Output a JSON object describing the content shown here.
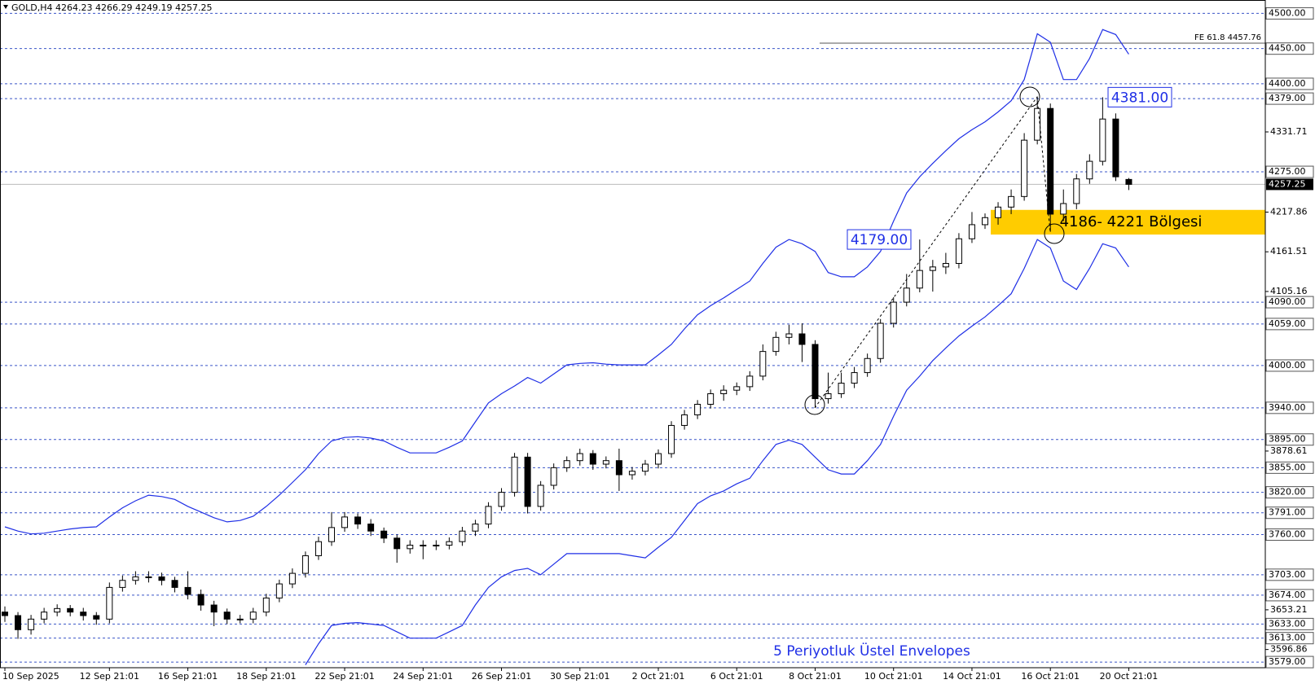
{
  "chart_data": {
    "type": "candlestick",
    "header": "GOLD,H4  4264.23 4266.29 4249.19 4257.25",
    "footer_note": "5 Periyotluk Üstel Envelopes",
    "categories": [
      "10 Sep 2025",
      null,
      null,
      null,
      null,
      null,
      null,
      null,
      "12 Sep 21:01",
      null,
      null,
      null,
      null,
      null,
      "16 Sep 21:01",
      null,
      null,
      null,
      null,
      null,
      "18 Sep 21:01",
      null,
      null,
      null,
      null,
      null,
      "22 Sep 21:01",
      null,
      null,
      null,
      null,
      null,
      "24 Sep 21:01",
      null,
      null,
      null,
      null,
      null,
      "26 Sep 21:01",
      null,
      null,
      null,
      null,
      null,
      "30 Sep 21:01",
      null,
      null,
      null,
      null,
      null,
      "2 Oct 21:01",
      null,
      null,
      null,
      null,
      null,
      "6 Oct 21:01",
      null,
      null,
      null,
      null,
      null,
      "8 Oct 21:01",
      null,
      null,
      null,
      null,
      null,
      "10 Oct 21:01",
      null,
      null,
      null,
      null,
      null,
      "14 Oct 21:01",
      null,
      null,
      null,
      null,
      null,
      "16 Oct 21:01",
      null,
      null,
      null,
      null,
      null,
      "20 Oct 21:01"
    ],
    "open": [
      3650,
      3645,
      3625,
      3640,
      3650,
      3655,
      3650,
      3645,
      3640,
      3685,
      3695,
      3700,
      3700,
      3695,
      3685,
      3675,
      3660,
      3650,
      3640,
      3640,
      3650,
      3670,
      3690,
      3705,
      3730,
      3750,
      3770,
      3785,
      3775,
      3765,
      3755,
      3740,
      3745,
      3745,
      3745,
      3750,
      3765,
      3775,
      3800,
      3820,
      3870,
      3800,
      3830,
      3855,
      3865,
      3875,
      3860,
      3865,
      3845,
      3850,
      3860,
      3875,
      3915,
      3930,
      3945,
      3960,
      3965,
      3970,
      3985,
      4020,
      4040,
      4045,
      4030,
      3953,
      3960,
      3975,
      3990,
      4010,
      4060,
      4090,
      4110,
      4135,
      4140,
      4145,
      4180,
      4200,
      4210,
      4225,
      4240,
      4320,
      4365,
      4215,
      4230,
      4265,
      4290,
      4350,
      4264.23
    ],
    "high": [
      3658,
      3650,
      3646,
      3656,
      3661,
      3660,
      3656,
      3650,
      3692,
      3702,
      3708,
      3708,
      3706,
      3700,
      3708,
      3682,
      3666,
      3655,
      3646,
      3656,
      3676,
      3696,
      3712,
      3736,
      3757,
      3792,
      3792,
      3790,
      3782,
      3770,
      3760,
      3752,
      3752,
      3752,
      3756,
      3771,
      3781,
      3806,
      3826,
      3876,
      3876,
      3836,
      3861,
      3871,
      3882,
      3880,
      3871,
      3882,
      3856,
      3866,
      3881,
      3921,
      3937,
      3951,
      3966,
      3972,
      3976,
      3992,
      4030,
      4048,
      4058,
      4060,
      4036,
      3990,
      3990,
      3998,
      4017,
      4066,
      4097,
      4130,
      4179,
      4150,
      4160,
      4188,
      4218,
      4216,
      4232,
      4250,
      4330,
      4382,
      4372,
      4250,
      4272,
      4300,
      4381,
      4358,
      4266.29
    ],
    "low": [
      3636,
      3612,
      3618,
      3634,
      3644,
      3644,
      3638,
      3632,
      3634,
      3679,
      3689,
      3692,
      3688,
      3678,
      3668,
      3652,
      3630,
      3633,
      3634,
      3634,
      3644,
      3664,
      3684,
      3699,
      3724,
      3744,
      3764,
      3768,
      3758,
      3748,
      3720,
      3733,
      3725,
      3738,
      3739,
      3744,
      3758,
      3769,
      3794,
      3814,
      3790,
      3794,
      3824,
      3849,
      3858,
      3852,
      3854,
      3822,
      3838,
      3844,
      3854,
      3869,
      3909,
      3924,
      3939,
      3950,
      3958,
      3964,
      3979,
      4014,
      4030,
      4005,
      3940,
      3946,
      3954,
      3968,
      3984,
      4004,
      4054,
      4084,
      4104,
      4105,
      4130,
      4138,
      4174,
      4194,
      4200,
      4215,
      4234,
      4314,
      4190,
      4205,
      4222,
      4258,
      4284,
      4262,
      4249.19
    ],
    "close": [
      3645,
      3625,
      3640,
      3650,
      3655,
      3650,
      3645,
      3640,
      3685,
      3695,
      3700,
      3700,
      3695,
      3685,
      3675,
      3660,
      3650,
      3640,
      3640,
      3650,
      3670,
      3690,
      3705,
      3730,
      3750,
      3770,
      3785,
      3775,
      3765,
      3755,
      3740,
      3745,
      3745,
      3745,
      3750,
      3765,
      3775,
      3800,
      3820,
      3870,
      3800,
      3830,
      3855,
      3865,
      3875,
      3860,
      3865,
      3845,
      3850,
      3860,
      3875,
      3915,
      3930,
      3945,
      3960,
      3965,
      3970,
      3985,
      4020,
      4040,
      4045,
      4030,
      3953,
      3960,
      3975,
      3990,
      4010,
      4060,
      4090,
      4110,
      4135,
      4140,
      4145,
      4180,
      4200,
      4210,
      4225,
      4240,
      4320,
      4365,
      4215,
      4230,
      4265,
      4290,
      4350,
      4268,
      4257.25
    ],
    "envelope_upper": [
      3771,
      3765,
      3761,
      3762,
      3765,
      3768,
      3770,
      3771,
      3785,
      3798,
      3808,
      3816,
      3814,
      3810,
      3800,
      3792,
      3784,
      3778,
      3780,
      3786,
      3800,
      3816,
      3834,
      3852,
      3875,
      3893,
      3898,
      3899,
      3897,
      3893,
      3884,
      3876,
      3876,
      3876,
      3884,
      3893,
      3920,
      3947,
      3960,
      3971,
      3983,
      3975,
      3988,
      4001,
      4003,
      4004,
      4002,
      4001,
      4001,
      4001,
      4015,
      4030,
      4052,
      4072,
      4085,
      4096,
      4108,
      4120,
      4145,
      4168,
      4179,
      4173,
      4162,
      4132,
      4126,
      4126,
      4140,
      4162,
      4205,
      4245,
      4268,
      4287,
      4305,
      4322,
      4335,
      4346,
      4360,
      4376,
      4406,
      4471,
      4459,
      4406,
      4406,
      4436,
      4477,
      4470,
      4442
    ],
    "envelope_lower": [
      null,
      null,
      null,
      null,
      null,
      null,
      null,
      null,
      null,
      null,
      null,
      null,
      null,
      null,
      null,
      null,
      null,
      null,
      null,
      null,
      null,
      null,
      null,
      3575,
      3605,
      3631,
      3634,
      3635,
      3633,
      3631,
      3622,
      3613,
      3613,
      3613,
      3622,
      3631,
      3660,
      3685,
      3700,
      3709,
      3712,
      3703,
      3718,
      3733,
      3733,
      3733,
      3733,
      3733,
      3730,
      3727,
      3742,
      3756,
      3780,
      3804,
      3815,
      3822,
      3832,
      3840,
      3865,
      3888,
      3894,
      3888,
      3870,
      3852,
      3846,
      3846,
      3865,
      3888,
      3928,
      3965,
      3985,
      4007,
      4025,
      4042,
      4056,
      4069,
      4085,
      4102,
      4138,
      4179,
      4167,
      4120,
      4108,
      4138,
      4173,
      4167,
      4140
    ],
    "envelope_color": "#1f2fe6",
    "ylim": [
      3571,
      4519
    ],
    "yticks": [
      4331.71,
      4217.86,
      4161.51,
      4105.16,
      3878.61,
      3653.21,
      3596.86
    ],
    "levels": [
      {
        "value": 4500,
        "label": "4500.00"
      },
      {
        "value": 4450,
        "label": "4450.00"
      },
      {
        "value": 4400,
        "label": "4400.00"
      },
      {
        "value": 4379,
        "label": "4379.00"
      },
      {
        "value": 4275,
        "label": "4275.00"
      },
      {
        "value": 4090,
        "label": "4090.00"
      },
      {
        "value": 4059,
        "label": "4059.00"
      },
      {
        "value": 4000,
        "label": "4000.00"
      },
      {
        "value": 3940,
        "label": "3940.00"
      },
      {
        "value": 3895,
        "label": "3895.00"
      },
      {
        "value": 3855,
        "label": "3855.00"
      },
      {
        "value": 3820,
        "label": "3820.00"
      },
      {
        "value": 3791,
        "label": "3791.00"
      },
      {
        "value": 3760,
        "label": "3760.00"
      },
      {
        "value": 3703,
        "label": "3703.00"
      },
      {
        "value": 3674,
        "label": "3674.00"
      },
      {
        "value": 3633,
        "label": "3633.00"
      },
      {
        "value": 3613,
        "label": "3613.00"
      },
      {
        "value": 3579,
        "label": "3579.00"
      }
    ],
    "level_color": "#3a55c8",
    "last_price": 4257.25,
    "fe_line": {
      "label": "FE 61.8 4457.76",
      "value": 4457.76
    },
    "zone": {
      "label": "4186- 4221 Bölgesi",
      "low": 4186,
      "high": 4221,
      "color": "#ffcc00"
    },
    "price_labels": [
      {
        "value": 4179,
        "label": "4179.00"
      },
      {
        "value": 4381,
        "label": "4381.00"
      }
    ]
  }
}
